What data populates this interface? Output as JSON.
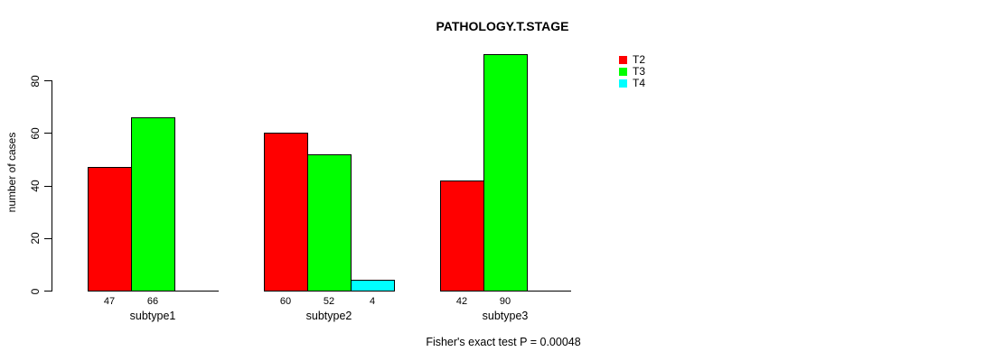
{
  "figure": {
    "background": "#ffffff",
    "text_color": "#000000"
  },
  "chart_data": {
    "type": "bar",
    "title": "PATHOLOGY.T.STAGE",
    "xlabel": "",
    "ylabel": "number of cases",
    "categories": [
      "subtype1",
      "subtype2",
      "subtype3"
    ],
    "series": [
      {
        "name": "T2",
        "color": "#ff0000",
        "values": [
          47,
          60,
          42
        ]
      },
      {
        "name": "T3",
        "color": "#00ff00",
        "values": [
          66,
          52,
          90
        ]
      },
      {
        "name": "T4",
        "color": "#00ffff",
        "values": [
          null,
          4,
          null
        ]
      }
    ],
    "bar_value_labels_shown": true,
    "yticks": [
      0,
      20,
      40,
      60,
      80
    ],
    "ylim": [
      0,
      90
    ],
    "grid": false,
    "legend_position": "top-right",
    "annotation": "Fisher's exact test P = 0.00048"
  }
}
